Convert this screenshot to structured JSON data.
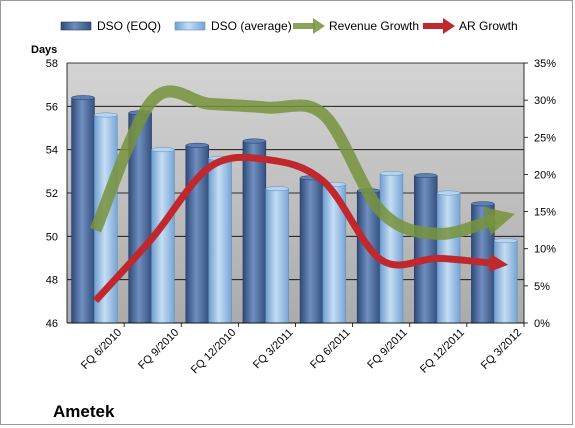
{
  "chart_data": {
    "type": "bar",
    "title": "Ametek",
    "ylabel": "Days",
    "ylim": [
      46,
      58
    ],
    "y2lim": [
      0,
      35
    ],
    "y_ticks": [
      "46",
      "48",
      "50",
      "52",
      "54",
      "56",
      "58"
    ],
    "y2_ticks": [
      "0%",
      "5%",
      "10%",
      "15%",
      "20%",
      "25%",
      "30%",
      "35%"
    ],
    "categories": [
      "FQ 6/2010",
      "FQ 9/2010",
      "FQ 12/2010",
      "FQ 3/2011",
      "FQ 6/2011",
      "FQ 9/2011",
      "FQ 12/2011",
      "FQ 3/2012"
    ],
    "series": [
      {
        "name": "DSO (EOQ)",
        "type": "bar",
        "axis": "left",
        "color": "#4a6a9c",
        "values": [
          56.4,
          55.7,
          54.2,
          54.4,
          52.7,
          52.1,
          52.8,
          51.5
        ]
      },
      {
        "name": "DSO (average)",
        "type": "bar",
        "axis": "left",
        "color": "#9dc3e6",
        "values": [
          55.6,
          54.0,
          53.6,
          52.2,
          52.4,
          52.9,
          52.0,
          49.8
        ]
      },
      {
        "name": "Revenue Growth",
        "type": "line",
        "axis": "right",
        "color": "#77933c",
        "values": [
          12.5,
          30.0,
          29.5,
          29.0,
          28.0,
          15.0,
          12.0,
          14.0
        ]
      },
      {
        "name": "AR Growth",
        "type": "line",
        "axis": "right",
        "color": "#c0282e",
        "values": [
          3.0,
          11.5,
          21.0,
          22.0,
          19.0,
          8.5,
          8.7,
          8.0
        ]
      }
    ],
    "legend": "top",
    "grid": true
  }
}
